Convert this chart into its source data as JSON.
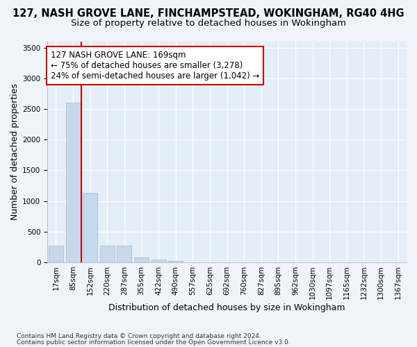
{
  "title1": "127, NASH GROVE LANE, FINCHAMPSTEAD, WOKINGHAM, RG40 4HG",
  "title2": "Size of property relative to detached houses in Wokingham",
  "xlabel": "Distribution of detached houses by size in Wokingham",
  "ylabel": "Number of detached properties",
  "categories": [
    "17sqm",
    "85sqm",
    "152sqm",
    "220sqm",
    "287sqm",
    "355sqm",
    "422sqm",
    "490sqm",
    "557sqm",
    "625sqm",
    "692sqm",
    "760sqm",
    "827sqm",
    "895sqm",
    "962sqm",
    "1030sqm",
    "1097sqm",
    "1165sqm",
    "1232sqm",
    "1300sqm",
    "1367sqm"
  ],
  "values": [
    270,
    2600,
    1130,
    275,
    270,
    80,
    45,
    20,
    0,
    0,
    0,
    0,
    0,
    0,
    0,
    0,
    0,
    0,
    0,
    0,
    0
  ],
  "bar_color": "#c6d8ea",
  "bar_edge_color": "#a8c0d8",
  "vline_x": 1.5,
  "vline_color": "#cc0000",
  "ylim": [
    0,
    3600
  ],
  "yticks": [
    0,
    500,
    1000,
    1500,
    2000,
    2500,
    3000,
    3500
  ],
  "ann_text_line1": "127 NASH GROVE LANE: 169sqm",
  "ann_text_line2": "← 75% of detached houses are smaller (3,278)",
  "ann_text_line3": "24% of semi-detached houses are larger (1,042) →",
  "ann_box_fc": "#ffffff",
  "ann_box_ec": "#cc0000",
  "footnote1": "Contains HM Land Registry data © Crown copyright and database right 2024.",
  "footnote2": "Contains public sector information licensed under the Open Government Licence v3.0.",
  "fig_bg_color": "#f0f4f8",
  "plot_bg_color": "#e4eef8",
  "grid_color": "#ffffff",
  "title1_fontsize": 10.5,
  "title2_fontsize": 9.5,
  "ann_fontsize": 8.5,
  "xlabel_fontsize": 9,
  "ylabel_fontsize": 9,
  "tick_fontsize": 7.5,
  "footnote_fontsize": 6.5
}
